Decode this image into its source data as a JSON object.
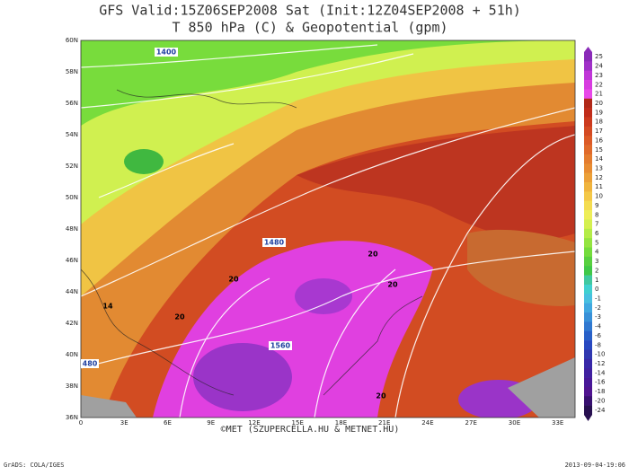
{
  "header": {
    "title": "GFS Valid:15Z06SEP2008 Sat (Init:12Z04SEP2008 + 51h)",
    "subtitle": "T 850 hPa (C) & Geopotential (gpm)"
  },
  "map": {
    "lat_labels": [
      "60N",
      "58N",
      "56N",
      "54N",
      "52N",
      "50N",
      "48N",
      "46N",
      "44N",
      "42N",
      "40N",
      "38N",
      "36N"
    ],
    "lon_labels": [
      "0",
      "3E",
      "6E",
      "9E",
      "12E",
      "15E",
      "18E",
      "21E",
      "24E",
      "27E",
      "30E",
      "33E"
    ],
    "contour_labels": [
      "1400",
      "1480",
      "1560",
      "480",
      "20",
      "20",
      "20",
      "20",
      "20",
      "14"
    ]
  },
  "colorbar": {
    "labels": [
      25,
      24,
      23,
      22,
      21,
      20,
      19,
      18,
      17,
      16,
      15,
      14,
      13,
      12,
      11,
      10,
      9,
      8,
      7,
      6,
      5,
      4,
      3,
      2,
      1,
      0,
      -1,
      -2,
      -3,
      -4,
      -6,
      -8,
      -10,
      -12,
      -14,
      -16,
      -18,
      -20,
      -24
    ],
    "colors": [
      "#8a2ab8",
      "#a030c8",
      "#c036d8",
      "#d83ce0",
      "#e848e8",
      "#b02818",
      "#c02c1a",
      "#cc3a1e",
      "#d44a22",
      "#dc5a26",
      "#e06a2a",
      "#e47c2e",
      "#e88c32",
      "#eca038",
      "#f0b43e",
      "#f4c848",
      "#f4dc50",
      "#eeee58",
      "#d4f050",
      "#b4ec48",
      "#94e440",
      "#74dc3c",
      "#58d040",
      "#40c848",
      "#40c8a0",
      "#40d0d0",
      "#48c0e0",
      "#40a8e0",
      "#3890d8",
      "#3078d0",
      "#2860c8",
      "#2848c0",
      "#3038b0",
      "#3828a8",
      "#4020a0",
      "#481898",
      "#501490",
      "#381070",
      "#281050"
    ]
  },
  "footer": {
    "credit": "©MET (SZUPERCELLA.HU & METNET.HU)",
    "software": "GrADS: COLA/IGES",
    "timestamp": "2013-09-04-19:06"
  }
}
